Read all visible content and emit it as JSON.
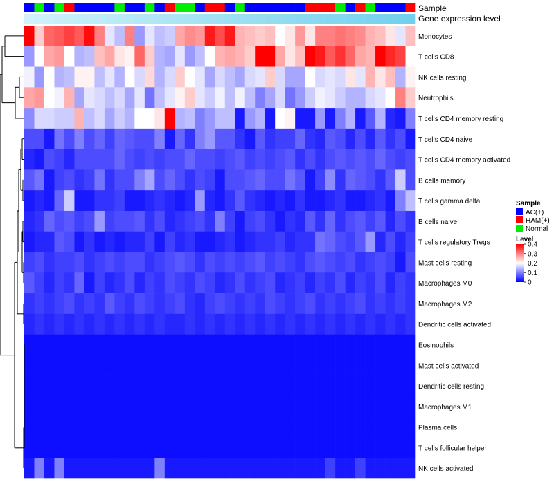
{
  "chart_data": {
    "type": "heatmap",
    "annotation_tracks": [
      "Sample",
      "Gene expression level"
    ],
    "rows": [
      "Monocytes",
      "T cells CD8",
      "NK cells resting",
      "Neutrophils",
      "T cells CD4 memory resting",
      "T cells CD4 naive",
      "T cells CD4 memory activated",
      "B cells memory",
      "T cells gamma delta",
      "B cells naive",
      "T cells regulatory  Tregs",
      "Mast cells resting",
      "Macrophages M0",
      "Macrophages M2",
      "Dendritic cells activated",
      "Eosinophils",
      "Mast cells activated",
      "Dendritic cells resting",
      "Macrophages M1",
      "Plasma cells",
      "T cells follicular helper",
      "NK cells activated"
    ],
    "sample_groups": [
      "AC(+)",
      "Normal",
      "AC(+)",
      "Normal",
      "HAM(+)",
      "AC(+)",
      "AC(+)",
      "AC(+)",
      "AC(+)",
      "Normal",
      "AC(+)",
      "AC(+)",
      "Normal",
      "AC(+)",
      "HAM(+)",
      "Normal",
      "Normal",
      "AC(+)",
      "HAM(+)",
      "HAM(+)",
      "AC(+)",
      "Normal",
      "AC(+)",
      "AC(+)",
      "AC(+)",
      "AC(+)",
      "AC(+)",
      "AC(+)",
      "HAM(+)",
      "HAM(+)",
      "HAM(+)",
      "Normal",
      "AC(+)",
      "HAM(+)",
      "Normal",
      "AC(+)",
      "AC(+)",
      "AC(+)",
      "HAM(+)"
    ],
    "sample_colors": {
      "AC(+)": "#0000ff",
      "HAM(+)": "#ff0000",
      "Normal": "#00ee00"
    },
    "expression_level": [
      0.05,
      0.07,
      0.09,
      0.11,
      0.13,
      0.15,
      0.17,
      0.19,
      0.21,
      0.23,
      0.25,
      0.27,
      0.29,
      0.31,
      0.33,
      0.35,
      0.37,
      0.39,
      0.41,
      0.43,
      0.45,
      0.47,
      0.49,
      0.51,
      0.53,
      0.55,
      0.57,
      0.59,
      0.61,
      0.63,
      0.65,
      0.67,
      0.69,
      0.71,
      0.73,
      0.75,
      0.77,
      0.79,
      0.81
    ],
    "expression_colors": {
      "low": "#d6f4fb",
      "high": "#5ac8e9"
    },
    "values": [
      [
        0.4,
        0.24,
        0.32,
        0.33,
        0.35,
        0.33,
        0.39,
        0.3,
        0.18,
        0.15,
        0.3,
        0.12,
        0.18,
        0.15,
        0.16,
        0.27,
        0.29,
        0.28,
        0.38,
        0.34,
        0.38,
        0.26,
        0.25,
        0.24,
        0.25,
        0.2,
        0.22,
        0.28,
        0.22,
        0.3,
        0.3,
        0.31,
        0.3,
        0.29,
        0.26,
        0.25,
        0.22,
        0.18,
        0.25
      ],
      [
        0.12,
        0.2,
        0.27,
        0.28,
        0.2,
        0.14,
        0.15,
        0.25,
        0.27,
        0.22,
        0.21,
        0.32,
        0.24,
        0.14,
        0.13,
        0.18,
        0.12,
        0.15,
        0.2,
        0.26,
        0.27,
        0.26,
        0.24,
        0.4,
        0.4,
        0.27,
        0.22,
        0.25,
        0.4,
        0.38,
        0.33,
        0.36,
        0.32,
        0.27,
        0.26,
        0.4,
        0.37,
        0.35,
        0.2
      ],
      [
        0.19,
        0.12,
        0.2,
        0.14,
        0.15,
        0.21,
        0.21,
        0.15,
        0.18,
        0.14,
        0.2,
        0.17,
        0.23,
        0.14,
        0.17,
        0.24,
        0.2,
        0.18,
        0.13,
        0.17,
        0.15,
        0.13,
        0.17,
        0.18,
        0.24,
        0.17,
        0.13,
        0.13,
        0.2,
        0.17,
        0.18,
        0.17,
        0.22,
        0.18,
        0.26,
        0.22,
        0.25,
        0.14,
        0.21
      ],
      [
        0.27,
        0.28,
        0.2,
        0.19,
        0.26,
        0.13,
        0.18,
        0.17,
        0.15,
        0.17,
        0.13,
        0.18,
        0.09,
        0.15,
        0.18,
        0.21,
        0.24,
        0.18,
        0.16,
        0.19,
        0.15,
        0.19,
        0.15,
        0.1,
        0.13,
        0.17,
        0.09,
        0.12,
        0.16,
        0.19,
        0.18,
        0.16,
        0.14,
        0.14,
        0.17,
        0.18,
        0.2,
        0.3,
        0.24
      ],
      [
        0.11,
        0.17,
        0.17,
        0.16,
        0.16,
        0.26,
        0.15,
        0.17,
        0.13,
        0.16,
        0.14,
        0.2,
        0.2,
        0.22,
        0.4,
        0.14,
        0.15,
        0.1,
        0.12,
        0.15,
        0.15,
        0.02,
        0.12,
        0.14,
        0.02,
        0.2,
        0.21,
        0.02,
        0.02,
        0.12,
        0.02,
        0.1,
        0.14,
        0.02,
        0.07,
        0.14,
        0.03,
        0.02,
        0.1
      ],
      [
        0.06,
        0.06,
        0.02,
        0.09,
        0.06,
        0.1,
        0.06,
        0.08,
        0.05,
        0.08,
        0.07,
        0.06,
        0.06,
        0.1,
        0.02,
        0.08,
        0.04,
        0.1,
        0.12,
        0.07,
        0.07,
        0.04,
        0.02,
        0.07,
        0.04,
        0.05,
        0.05,
        0.08,
        0.04,
        0.03,
        0.07,
        0.06,
        0.03,
        0.06,
        0.03,
        0.07,
        0.04,
        0.06,
        0.02
      ],
      [
        0.03,
        0.02,
        0.06,
        0.05,
        0.03,
        0.06,
        0.06,
        0.06,
        0.06,
        0.08,
        0.06,
        0.05,
        0.06,
        0.05,
        0.06,
        0.06,
        0.08,
        0.06,
        0.06,
        0.05,
        0.06,
        0.07,
        0.05,
        0.06,
        0.05,
        0.06,
        0.07,
        0.04,
        0.06,
        0.04,
        0.06,
        0.07,
        0.06,
        0.07,
        0.06,
        0.08,
        0.06,
        0.05,
        0.06
      ],
      [
        0.07,
        0.09,
        0.02,
        0.05,
        0.06,
        0.04,
        0.05,
        0.09,
        0.04,
        0.06,
        0.06,
        0.1,
        0.13,
        0.06,
        0.08,
        0.06,
        0.04,
        0.06,
        0.05,
        0.02,
        0.06,
        0.06,
        0.07,
        0.08,
        0.06,
        0.06,
        0.09,
        0.07,
        0.02,
        0.05,
        0.11,
        0.04,
        0.08,
        0.07,
        0.06,
        0.04,
        0.07,
        0.16,
        0.06
      ],
      [
        0.02,
        0.03,
        0.02,
        0.08,
        0.16,
        0.02,
        0.02,
        0.04,
        0.04,
        0.05,
        0.02,
        0.02,
        0.03,
        0.04,
        0.03,
        0.02,
        0.03,
        0.12,
        0.03,
        0.02,
        0.04,
        0.07,
        0.04,
        0.03,
        0.02,
        0.03,
        0.02,
        0.04,
        0.02,
        0.02,
        0.03,
        0.04,
        0.02,
        0.02,
        0.03,
        0.04,
        0.02,
        0.1,
        0.15
      ],
      [
        0.03,
        0.04,
        0.08,
        0.06,
        0.07,
        0.05,
        0.06,
        0.12,
        0.05,
        0.06,
        0.06,
        0.07,
        0.04,
        0.06,
        0.03,
        0.04,
        0.05,
        0.06,
        0.04,
        0.1,
        0.05,
        0.02,
        0.05,
        0.06,
        0.04,
        0.02,
        0.04,
        0.03,
        0.07,
        0.04,
        0.08,
        0.04,
        0.06,
        0.07,
        0.05,
        0.07,
        0.03,
        0.06,
        0.04
      ],
      [
        0.02,
        0.03,
        0.03,
        0.07,
        0.06,
        0.02,
        0.04,
        0.02,
        0.03,
        0.02,
        0.03,
        0.03,
        0.05,
        0.02,
        0.05,
        0.03,
        0.04,
        0.02,
        0.02,
        0.03,
        0.04,
        0.02,
        0.03,
        0.04,
        0.04,
        0.05,
        0.03,
        0.04,
        0.04,
        0.09,
        0.08,
        0.06,
        0.05,
        0.07,
        0.12,
        0.03,
        0.06,
        0.03,
        0.05
      ],
      [
        0.05,
        0.06,
        0.04,
        0.05,
        0.05,
        0.06,
        0.04,
        0.05,
        0.06,
        0.05,
        0.06,
        0.06,
        0.04,
        0.05,
        0.06,
        0.07,
        0.06,
        0.04,
        0.06,
        0.05,
        0.06,
        0.05,
        0.06,
        0.07,
        0.05,
        0.06,
        0.05,
        0.04,
        0.06,
        0.07,
        0.06,
        0.05,
        0.06,
        0.04,
        0.05,
        0.06,
        0.05,
        0.02,
        0.06
      ],
      [
        0.07,
        0.05,
        0.03,
        0.05,
        0.04,
        0.08,
        0.02,
        0.05,
        0.03,
        0.04,
        0.06,
        0.03,
        0.05,
        0.04,
        0.06,
        0.05,
        0.04,
        0.06,
        0.05,
        0.03,
        0.04,
        0.06,
        0.04,
        0.05,
        0.06,
        0.03,
        0.04,
        0.05,
        0.03,
        0.05,
        0.04,
        0.06,
        0.03,
        0.05,
        0.04,
        0.06,
        0.03,
        0.05,
        0.04
      ],
      [
        0.04,
        0.05,
        0.04,
        0.05,
        0.06,
        0.04,
        0.05,
        0.04,
        0.07,
        0.05,
        0.04,
        0.06,
        0.05,
        0.04,
        0.05,
        0.06,
        0.04,
        0.03,
        0.05,
        0.06,
        0.05,
        0.04,
        0.05,
        0.04,
        0.06,
        0.05,
        0.04,
        0.05,
        0.06,
        0.04,
        0.05,
        0.04,
        0.05,
        0.06,
        0.04,
        0.05,
        0.04,
        0.05,
        0.04
      ],
      [
        0.03,
        0.04,
        0.03,
        0.04,
        0.03,
        0.04,
        0.03,
        0.04,
        0.03,
        0.04,
        0.03,
        0.04,
        0.03,
        0.04,
        0.03,
        0.03,
        0.04,
        0.03,
        0.04,
        0.03,
        0.04,
        0.03,
        0.04,
        0.03,
        0.04,
        0.03,
        0.04,
        0.03,
        0.04,
        0.03,
        0.04,
        0.03,
        0.04,
        0.03,
        0.04,
        0.03,
        0.04,
        0.03,
        0.04
      ],
      [
        0.01,
        0.01,
        0.01,
        0.01,
        0.01,
        0.01,
        0.01,
        0.01,
        0.01,
        0.01,
        0.01,
        0.01,
        0.01,
        0.01,
        0.01,
        0.01,
        0.01,
        0.01,
        0.01,
        0.01,
        0.01,
        0.01,
        0.01,
        0.01,
        0.01,
        0.01,
        0.01,
        0.01,
        0.01,
        0.01,
        0.01,
        0.01,
        0.01,
        0.01,
        0.01,
        0.01,
        0.01,
        0.01,
        0.01
      ],
      [
        0.01,
        0.01,
        0.01,
        0.01,
        0.01,
        0.01,
        0.01,
        0.01,
        0.01,
        0.01,
        0.01,
        0.01,
        0.01,
        0.01,
        0.01,
        0.01,
        0.01,
        0.01,
        0.01,
        0.01,
        0.01,
        0.01,
        0.01,
        0.01,
        0.01,
        0.01,
        0.01,
        0.01,
        0.01,
        0.01,
        0.01,
        0.01,
        0.01,
        0.01,
        0.01,
        0.01,
        0.01,
        0.01,
        0.01
      ],
      [
        0.01,
        0.01,
        0.01,
        0.01,
        0.01,
        0.01,
        0.01,
        0.01,
        0.01,
        0.01,
        0.01,
        0.01,
        0.01,
        0.01,
        0.01,
        0.01,
        0.01,
        0.01,
        0.01,
        0.01,
        0.01,
        0.01,
        0.01,
        0.01,
        0.01,
        0.01,
        0.01,
        0.01,
        0.01,
        0.01,
        0.01,
        0.01,
        0.01,
        0.01,
        0.01,
        0.01,
        0.01,
        0.01,
        0.01
      ],
      [
        0.01,
        0.01,
        0.01,
        0.01,
        0.01,
        0.01,
        0.01,
        0.01,
        0.01,
        0.01,
        0.01,
        0.01,
        0.01,
        0.01,
        0.01,
        0.01,
        0.01,
        0.01,
        0.01,
        0.01,
        0.01,
        0.01,
        0.01,
        0.01,
        0.01,
        0.01,
        0.01,
        0.01,
        0.01,
        0.01,
        0.01,
        0.01,
        0.01,
        0.01,
        0.01,
        0.01,
        0.01,
        0.01,
        0.01
      ],
      [
        0.01,
        0.01,
        0.01,
        0.01,
        0.01,
        0.01,
        0.01,
        0.01,
        0.01,
        0.01,
        0.01,
        0.01,
        0.01,
        0.01,
        0.01,
        0.01,
        0.01,
        0.01,
        0.01,
        0.01,
        0.01,
        0.01,
        0.01,
        0.01,
        0.01,
        0.01,
        0.01,
        0.01,
        0.01,
        0.01,
        0.01,
        0.01,
        0.01,
        0.01,
        0.01,
        0.01,
        0.01,
        0.01,
        0.01
      ],
      [
        0.01,
        0.01,
        0.01,
        0.01,
        0.01,
        0.01,
        0.01,
        0.01,
        0.01,
        0.01,
        0.01,
        0.01,
        0.01,
        0.01,
        0.01,
        0.01,
        0.01,
        0.01,
        0.01,
        0.01,
        0.01,
        0.01,
        0.01,
        0.01,
        0.01,
        0.01,
        0.01,
        0.01,
        0.01,
        0.01,
        0.01,
        0.01,
        0.01,
        0.01,
        0.01,
        0.01,
        0.01,
        0.01,
        0.01
      ],
      [
        0.02,
        0.1,
        0.02,
        0.1,
        0.02,
        0.02,
        0.02,
        0.02,
        0.02,
        0.02,
        0.02,
        0.02,
        0.02,
        0.1,
        0.02,
        0.02,
        0.02,
        0.02,
        0.02,
        0.02,
        0.02,
        0.02,
        0.02,
        0.02,
        0.02,
        0.02,
        0.02,
        0.02,
        0.02,
        0.02,
        0.05,
        0.02,
        0.02,
        0.05,
        0.02,
        0.02,
        0.02,
        0.02,
        0.02
      ]
    ],
    "color_scale": {
      "min": 0,
      "max": 0.4,
      "low": "#0000ff",
      "mid": "#ffffff",
      "high": "#ff0000",
      "mid_value": 0.2
    },
    "legend": {
      "sample_title": "Sample",
      "sample_entries": [
        "AC(+)",
        "HAM(+)",
        "Normal"
      ],
      "level_title": "Level",
      "level_ticks": [
        "0.4",
        "0.3",
        "0.2",
        "0.1",
        "0"
      ],
      "level_tick_values": [
        0.4,
        0.3,
        0.2,
        0.1,
        0
      ],
      "placement": "right"
    },
    "dendrogram": "row clustering tree on left side",
    "title": "",
    "xlabel": "",
    "ylabel": ""
  }
}
